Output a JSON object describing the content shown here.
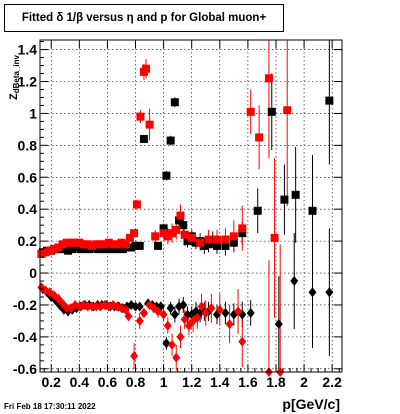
{
  "header": {
    "title": "Fitted δ 1/β versus η and p for Global muon+"
  },
  "footer": {
    "datestamp": "Fri Feb 18 17:30:11 2022"
  },
  "chart_data": {
    "type": "scatter",
    "title": "Fitted δ 1/β versus η and p for Global muon+",
    "xlabel": "p[GeV/c]",
    "ylabel": "Z_dBeta_inv",
    "xlim": [
      0.12,
      2.27
    ],
    "ylim": [
      -0.62,
      1.46
    ],
    "grid": true,
    "x_ticks": [
      "0.2",
      "0.4",
      "0.6",
      "0.8",
      "1",
      "1.2",
      "1.4",
      "1.6",
      "1.8",
      "2",
      "2.2"
    ],
    "y_ticks": [
      "-0.6",
      "-0.4",
      "-0.2",
      "0",
      "0.2",
      "0.4",
      "0.6",
      "0.8",
      "1",
      "1.2",
      "1.4"
    ],
    "series": [
      {
        "color": "#000000",
        "marker": "square",
        "points": [
          [
            0.14,
            0.13,
            0.01
          ],
          [
            0.17,
            0.14,
            0.01
          ],
          [
            0.2,
            0.14,
            0.01
          ],
          [
            0.23,
            0.15,
            0.01
          ],
          [
            0.26,
            0.15,
            0.01
          ],
          [
            0.29,
            0.15,
            0.01
          ],
          [
            0.32,
            0.14,
            0.01
          ],
          [
            0.35,
            0.15,
            0.01
          ],
          [
            0.38,
            0.16,
            0.01
          ],
          [
            0.41,
            0.15,
            0.01
          ],
          [
            0.44,
            0.15,
            0.01
          ],
          [
            0.47,
            0.15,
            0.01
          ],
          [
            0.5,
            0.16,
            0.01
          ],
          [
            0.53,
            0.15,
            0.01
          ],
          [
            0.56,
            0.15,
            0.01
          ],
          [
            0.59,
            0.15,
            0.01
          ],
          [
            0.62,
            0.15,
            0.01
          ],
          [
            0.65,
            0.15,
            0.01
          ],
          [
            0.68,
            0.15,
            0.01
          ],
          [
            0.71,
            0.15,
            0.01
          ],
          [
            0.74,
            0.16,
            0.01
          ],
          [
            0.77,
            0.16,
            0.02
          ],
          [
            0.8,
            0.17,
            0.02
          ],
          [
            0.83,
            0.17,
            0.02
          ],
          [
            0.86,
            0.84,
            0.02
          ],
          [
            0.96,
            0.17,
            0.02
          ],
          [
            1.0,
            0.28,
            0.03
          ],
          [
            1.02,
            0.61,
            0.03
          ],
          [
            1.05,
            0.83,
            0.03
          ],
          [
            1.08,
            1.07,
            0.03
          ],
          [
            1.11,
            0.33,
            0.04
          ],
          [
            1.14,
            0.3,
            0.04
          ],
          [
            1.17,
            0.2,
            0.04
          ],
          [
            1.2,
            0.23,
            0.04
          ],
          [
            1.23,
            0.19,
            0.04
          ],
          [
            1.26,
            0.2,
            0.05
          ],
          [
            1.29,
            0.17,
            0.05
          ],
          [
            1.32,
            0.18,
            0.05
          ],
          [
            1.35,
            0.21,
            0.05
          ],
          [
            1.38,
            0.17,
            0.05
          ],
          [
            1.44,
            0.17,
            0.06
          ],
          [
            1.5,
            0.19,
            0.06
          ],
          [
            1.56,
            0.25,
            0.07
          ],
          [
            1.67,
            0.39,
            0.14
          ],
          [
            1.77,
            1.01,
            0.24
          ],
          [
            1.86,
            0.46,
            0.22
          ],
          [
            1.94,
            0.49,
            0.3
          ],
          [
            2.06,
            0.39,
            0.35
          ],
          [
            2.18,
            1.08,
            0.4
          ]
        ]
      },
      {
        "color": "#ff0000",
        "marker": "square",
        "points": [
          [
            0.13,
            0.12,
            0.01
          ],
          [
            0.16,
            0.13,
            0.01
          ],
          [
            0.19,
            0.14,
            0.01
          ],
          [
            0.22,
            0.15,
            0.01
          ],
          [
            0.25,
            0.16,
            0.01
          ],
          [
            0.28,
            0.18,
            0.01
          ],
          [
            0.31,
            0.19,
            0.01
          ],
          [
            0.34,
            0.19,
            0.01
          ],
          [
            0.37,
            0.19,
            0.01
          ],
          [
            0.4,
            0.19,
            0.01
          ],
          [
            0.43,
            0.18,
            0.01
          ],
          [
            0.46,
            0.18,
            0.01
          ],
          [
            0.49,
            0.17,
            0.01
          ],
          [
            0.52,
            0.18,
            0.01
          ],
          [
            0.55,
            0.18,
            0.01
          ],
          [
            0.58,
            0.18,
            0.01
          ],
          [
            0.61,
            0.19,
            0.01
          ],
          [
            0.64,
            0.18,
            0.01
          ],
          [
            0.67,
            0.18,
            0.01
          ],
          [
            0.7,
            0.19,
            0.01
          ],
          [
            0.73,
            0.18,
            0.01
          ],
          [
            0.76,
            0.22,
            0.02
          ],
          [
            0.79,
            0.25,
            0.02
          ],
          [
            0.81,
            0.43,
            0.03
          ],
          [
            0.835,
            0.98,
            0.04
          ],
          [
            0.86,
            1.26,
            0.05
          ],
          [
            0.875,
            1.28,
            0.06
          ],
          [
            0.9,
            0.93,
            0.1
          ],
          [
            0.94,
            0.23,
            0.04
          ],
          [
            1.0,
            0.25,
            0.04
          ],
          [
            1.03,
            0.23,
            0.05
          ],
          [
            1.06,
            0.25,
            0.06
          ],
          [
            1.09,
            0.27,
            0.06
          ],
          [
            1.12,
            0.36,
            0.07
          ],
          [
            1.15,
            0.24,
            0.07
          ],
          [
            1.2,
            0.22,
            0.05
          ],
          [
            1.26,
            0.19,
            0.05
          ],
          [
            1.32,
            0.21,
            0.06
          ],
          [
            1.38,
            0.21,
            0.06
          ],
          [
            1.44,
            0.21,
            0.07
          ],
          [
            1.5,
            0.23,
            0.1
          ],
          [
            1.56,
            0.28,
            0.14
          ],
          [
            1.62,
            1.01,
            0.14
          ],
          [
            1.68,
            0.85,
            0.2
          ],
          [
            1.75,
            1.22,
            0.5
          ],
          [
            1.79,
            0.22,
            0.5
          ],
          [
            1.88,
            1.02,
            0.6
          ]
        ]
      },
      {
        "color": "#000000",
        "marker": "diamond",
        "points": [
          [
            0.14,
            -0.1,
            0.01
          ],
          [
            0.17,
            -0.12,
            0.01
          ],
          [
            0.2,
            -0.15,
            0.01
          ],
          [
            0.23,
            -0.17,
            0.01
          ],
          [
            0.26,
            -0.2,
            0.01
          ],
          [
            0.29,
            -0.23,
            0.01
          ],
          [
            0.32,
            -0.24,
            0.01
          ],
          [
            0.35,
            -0.23,
            0.01
          ],
          [
            0.38,
            -0.22,
            0.01
          ],
          [
            0.41,
            -0.21,
            0.01
          ],
          [
            0.44,
            -0.2,
            0.01
          ],
          [
            0.47,
            -0.2,
            0.01
          ],
          [
            0.5,
            -0.21,
            0.01
          ],
          [
            0.53,
            -0.2,
            0.01
          ],
          [
            0.56,
            -0.2,
            0.01
          ],
          [
            0.59,
            -0.2,
            0.01
          ],
          [
            0.62,
            -0.21,
            0.01
          ],
          [
            0.65,
            -0.21,
            0.01
          ],
          [
            0.68,
            -0.21,
            0.01
          ],
          [
            0.71,
            -0.22,
            0.01
          ],
          [
            0.74,
            -0.21,
            0.01
          ],
          [
            0.77,
            -0.2,
            0.02
          ],
          [
            0.8,
            -0.21,
            0.02
          ],
          [
            0.83,
            -0.21,
            0.02
          ],
          [
            0.86,
            -0.25,
            0.02
          ],
          [
            0.89,
            -0.19,
            0.02
          ],
          [
            0.92,
            -0.2,
            0.02
          ],
          [
            0.95,
            -0.21,
            0.03
          ],
          [
            0.98,
            -0.21,
            0.03
          ],
          [
            1.02,
            -0.44,
            0.04
          ],
          [
            1.05,
            -0.22,
            0.04
          ],
          [
            1.08,
            -0.26,
            0.05
          ],
          [
            1.11,
            -0.21,
            0.05
          ],
          [
            1.14,
            -0.2,
            0.05
          ],
          [
            1.17,
            -0.26,
            0.05
          ],
          [
            1.2,
            -0.26,
            0.05
          ],
          [
            1.23,
            -0.24,
            0.06
          ],
          [
            1.26,
            -0.25,
            0.06
          ],
          [
            1.29,
            -0.24,
            0.06
          ],
          [
            1.32,
            -0.24,
            0.06
          ],
          [
            1.38,
            -0.26,
            0.06
          ],
          [
            1.44,
            -0.25,
            0.07
          ],
          [
            1.5,
            -0.26,
            0.07
          ],
          [
            1.56,
            -0.26,
            0.08
          ],
          [
            1.62,
            -0.25,
            0.08
          ],
          [
            1.82,
            -0.32,
            0.3
          ],
          [
            1.93,
            -0.05,
            0.3
          ],
          [
            2.06,
            -0.12,
            0.35
          ],
          [
            2.18,
            -0.12,
            0.4
          ]
        ]
      },
      {
        "color": "#ff0000",
        "marker": "diamond",
        "points": [
          [
            0.13,
            -0.09,
            0.01
          ],
          [
            0.16,
            -0.11,
            0.01
          ],
          [
            0.19,
            -0.12,
            0.01
          ],
          [
            0.22,
            -0.14,
            0.01
          ],
          [
            0.25,
            -0.16,
            0.01
          ],
          [
            0.28,
            -0.19,
            0.01
          ],
          [
            0.31,
            -0.22,
            0.01
          ],
          [
            0.34,
            -0.22,
            0.01
          ],
          [
            0.37,
            -0.2,
            0.01
          ],
          [
            0.4,
            -0.21,
            0.01
          ],
          [
            0.43,
            -0.2,
            0.01
          ],
          [
            0.46,
            -0.21,
            0.01
          ],
          [
            0.49,
            -0.21,
            0.01
          ],
          [
            0.52,
            -0.21,
            0.01
          ],
          [
            0.55,
            -0.21,
            0.01
          ],
          [
            0.58,
            -0.2,
            0.01
          ],
          [
            0.61,
            -0.21,
            0.01
          ],
          [
            0.64,
            -0.2,
            0.01
          ],
          [
            0.67,
            -0.21,
            0.01
          ],
          [
            0.7,
            -0.22,
            0.01
          ],
          [
            0.73,
            -0.23,
            0.02
          ],
          [
            0.75,
            -0.27,
            0.03
          ],
          [
            0.79,
            -0.52,
            0.08
          ],
          [
            0.83,
            -0.3,
            0.05
          ],
          [
            0.86,
            -0.25,
            0.03
          ],
          [
            0.9,
            -0.2,
            0.03
          ],
          [
            0.93,
            -0.22,
            0.03
          ],
          [
            0.96,
            -0.24,
            0.04
          ],
          [
            1.0,
            -0.26,
            0.04
          ],
          [
            1.03,
            -0.33,
            0.05
          ],
          [
            1.06,
            -0.45,
            0.07
          ],
          [
            1.09,
            -0.53,
            0.08
          ],
          [
            1.12,
            -0.4,
            0.07
          ],
          [
            1.15,
            -0.29,
            0.06
          ],
          [
            1.18,
            -0.33,
            0.06
          ],
          [
            1.21,
            -0.3,
            0.07
          ],
          [
            1.24,
            -0.28,
            0.07
          ],
          [
            1.27,
            -0.21,
            0.08
          ],
          [
            1.3,
            -0.25,
            0.08
          ],
          [
            1.34,
            -0.22,
            0.09
          ],
          [
            1.4,
            -0.23,
            0.1
          ],
          [
            1.47,
            -0.32,
            0.12
          ],
          [
            1.53,
            -0.24,
            0.14
          ],
          [
            1.56,
            -0.43,
            0.16
          ],
          [
            1.75,
            -0.62,
            0.7
          ],
          [
            1.83,
            -0.62,
            0.8
          ]
        ]
      }
    ]
  }
}
